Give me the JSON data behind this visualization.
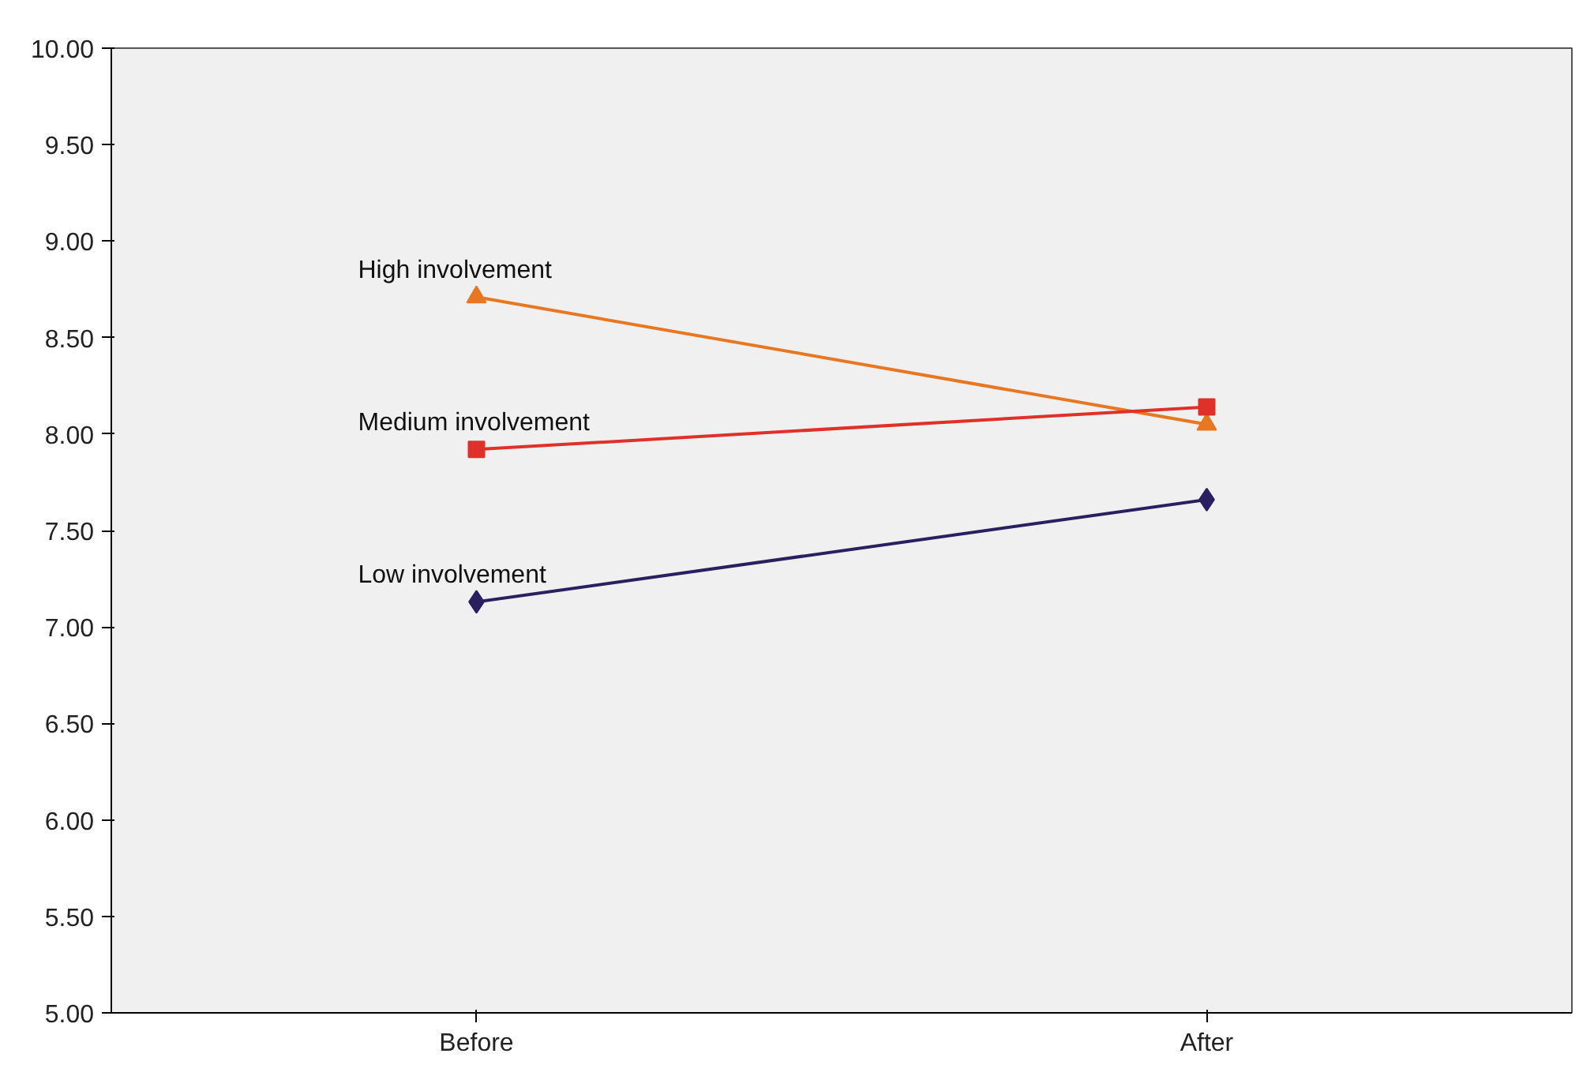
{
  "chart_data": {
    "type": "line",
    "categories": [
      "Before",
      "After"
    ],
    "series": [
      {
        "name": "High involvement",
        "color": "#e87722",
        "values": [
          8.71,
          8.05
        ],
        "marker": "triangle"
      },
      {
        "name": "Medium involvement",
        "color": "#e0302a",
        "values": [
          7.92,
          8.14
        ],
        "marker": "square"
      },
      {
        "name": "Low involvement",
        "color": "#2a2060",
        "values": [
          7.13,
          7.66
        ],
        "marker": "diamond"
      }
    ],
    "ylim": [
      5,
      10
    ],
    "yticks": [
      {
        "value": 5,
        "label": "5.00"
      },
      {
        "value": 5.5,
        "label": "5.50"
      },
      {
        "value": 6,
        "label": "6.00"
      },
      {
        "value": 6.5,
        "label": "6.50"
      },
      {
        "value": 7,
        "label": "7.00"
      },
      {
        "value": 7.5,
        "label": "7.50"
      },
      {
        "value": 8,
        "label": "8.00"
      },
      {
        "value": 8.5,
        "label": "8.50"
      },
      {
        "value": 9,
        "label": "9.00"
      },
      {
        "value": 9.5,
        "label": "9.50"
      },
      {
        "value": 10,
        "label": "10.00"
      }
    ],
    "grid": false,
    "line_style": "solid"
  }
}
